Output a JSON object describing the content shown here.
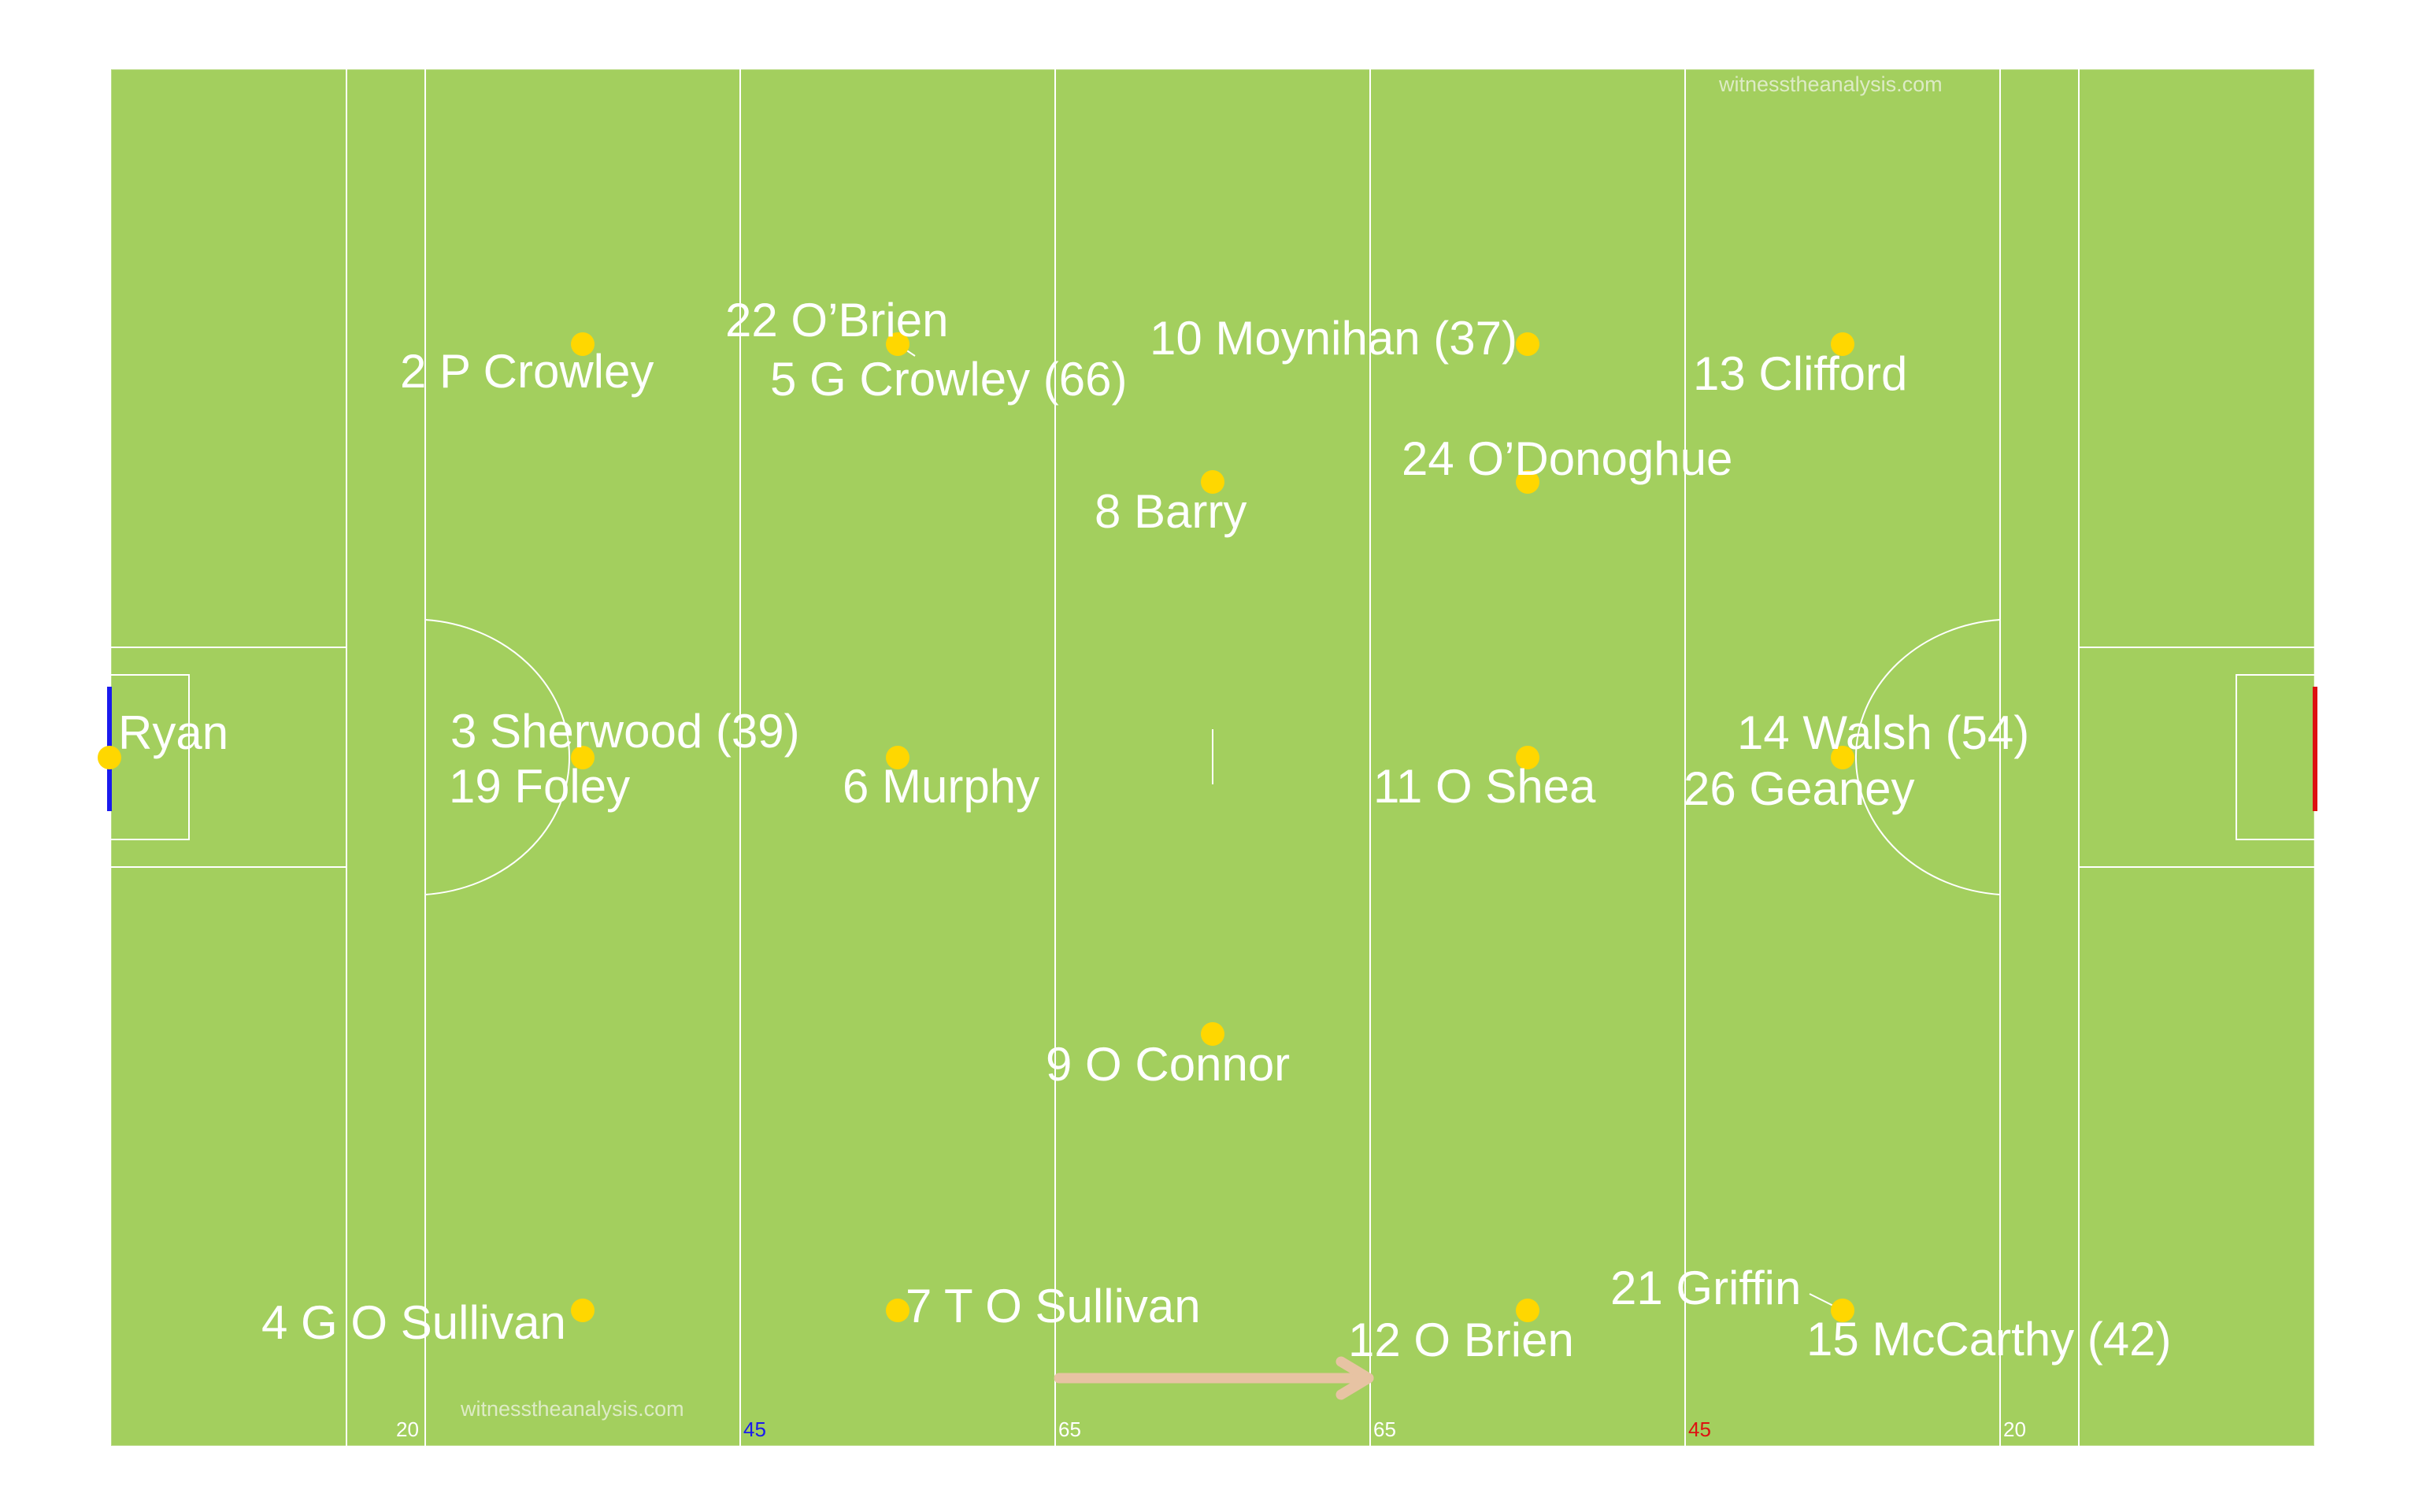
{
  "pitch": {
    "grass_color": "#a3cf5e",
    "line_color": "#ffffff",
    "home_goal_color": "#1a1aee",
    "away_goal_color": "#dd1111",
    "player_dot_color": "#ffd700",
    "arrow_color": "#e7c3a3"
  },
  "watermarks": {
    "top": "witnesstheanalysis.com",
    "bottom": "witnesstheanalysis.com"
  },
  "line_markers": {
    "m20_left": "20",
    "m45_left": "45",
    "m65_left": "65",
    "m65_right": "65",
    "m45_right": "45",
    "m20_right": "20",
    "colors": {
      "m20_left": "#ffffff",
      "m45_left": "#1a1aee",
      "m65_left": "#ffffff",
      "m65_right": "#ffffff",
      "m45_right": "#dd1111",
      "m20_right": "#ffffff"
    }
  },
  "players": [
    {
      "id": "ryan",
      "label": "Ryan"
    },
    {
      "id": "p-crowley",
      "label": "2 P Crowley"
    },
    {
      "id": "sherwood",
      "label": "3 Sherwood (39)"
    },
    {
      "id": "foley",
      "label": "19 Foley"
    },
    {
      "id": "g-o-sullivan",
      "label": "4 G O Sullivan"
    },
    {
      "id": "obrien-22",
      "label": "22 O’Brien"
    },
    {
      "id": "g-crowley",
      "label": "5 G Crowley (66)"
    },
    {
      "id": "murphy",
      "label": "6 Murphy"
    },
    {
      "id": "t-o-sullivan",
      "label": "7 T O Sullivan"
    },
    {
      "id": "barry",
      "label": "8 Barry"
    },
    {
      "id": "o-connor",
      "label": "9 O Connor"
    },
    {
      "id": "moynihan",
      "label": "10 Moynihan (37)"
    },
    {
      "id": "odonoghue",
      "label": "24 O’Donoghue"
    },
    {
      "id": "o-shea",
      "label": "11 O Shea"
    },
    {
      "id": "o-brien-12",
      "label": "12 O Brien"
    },
    {
      "id": "clifford",
      "label": "13 Clifford"
    },
    {
      "id": "walsh",
      "label": "14 Walsh (54)"
    },
    {
      "id": "geaney",
      "label": "26 Geaney"
    },
    {
      "id": "griffin",
      "label": "21 Griffin"
    },
    {
      "id": "mccarthy",
      "label": "15 McCarthy (42)"
    }
  ]
}
